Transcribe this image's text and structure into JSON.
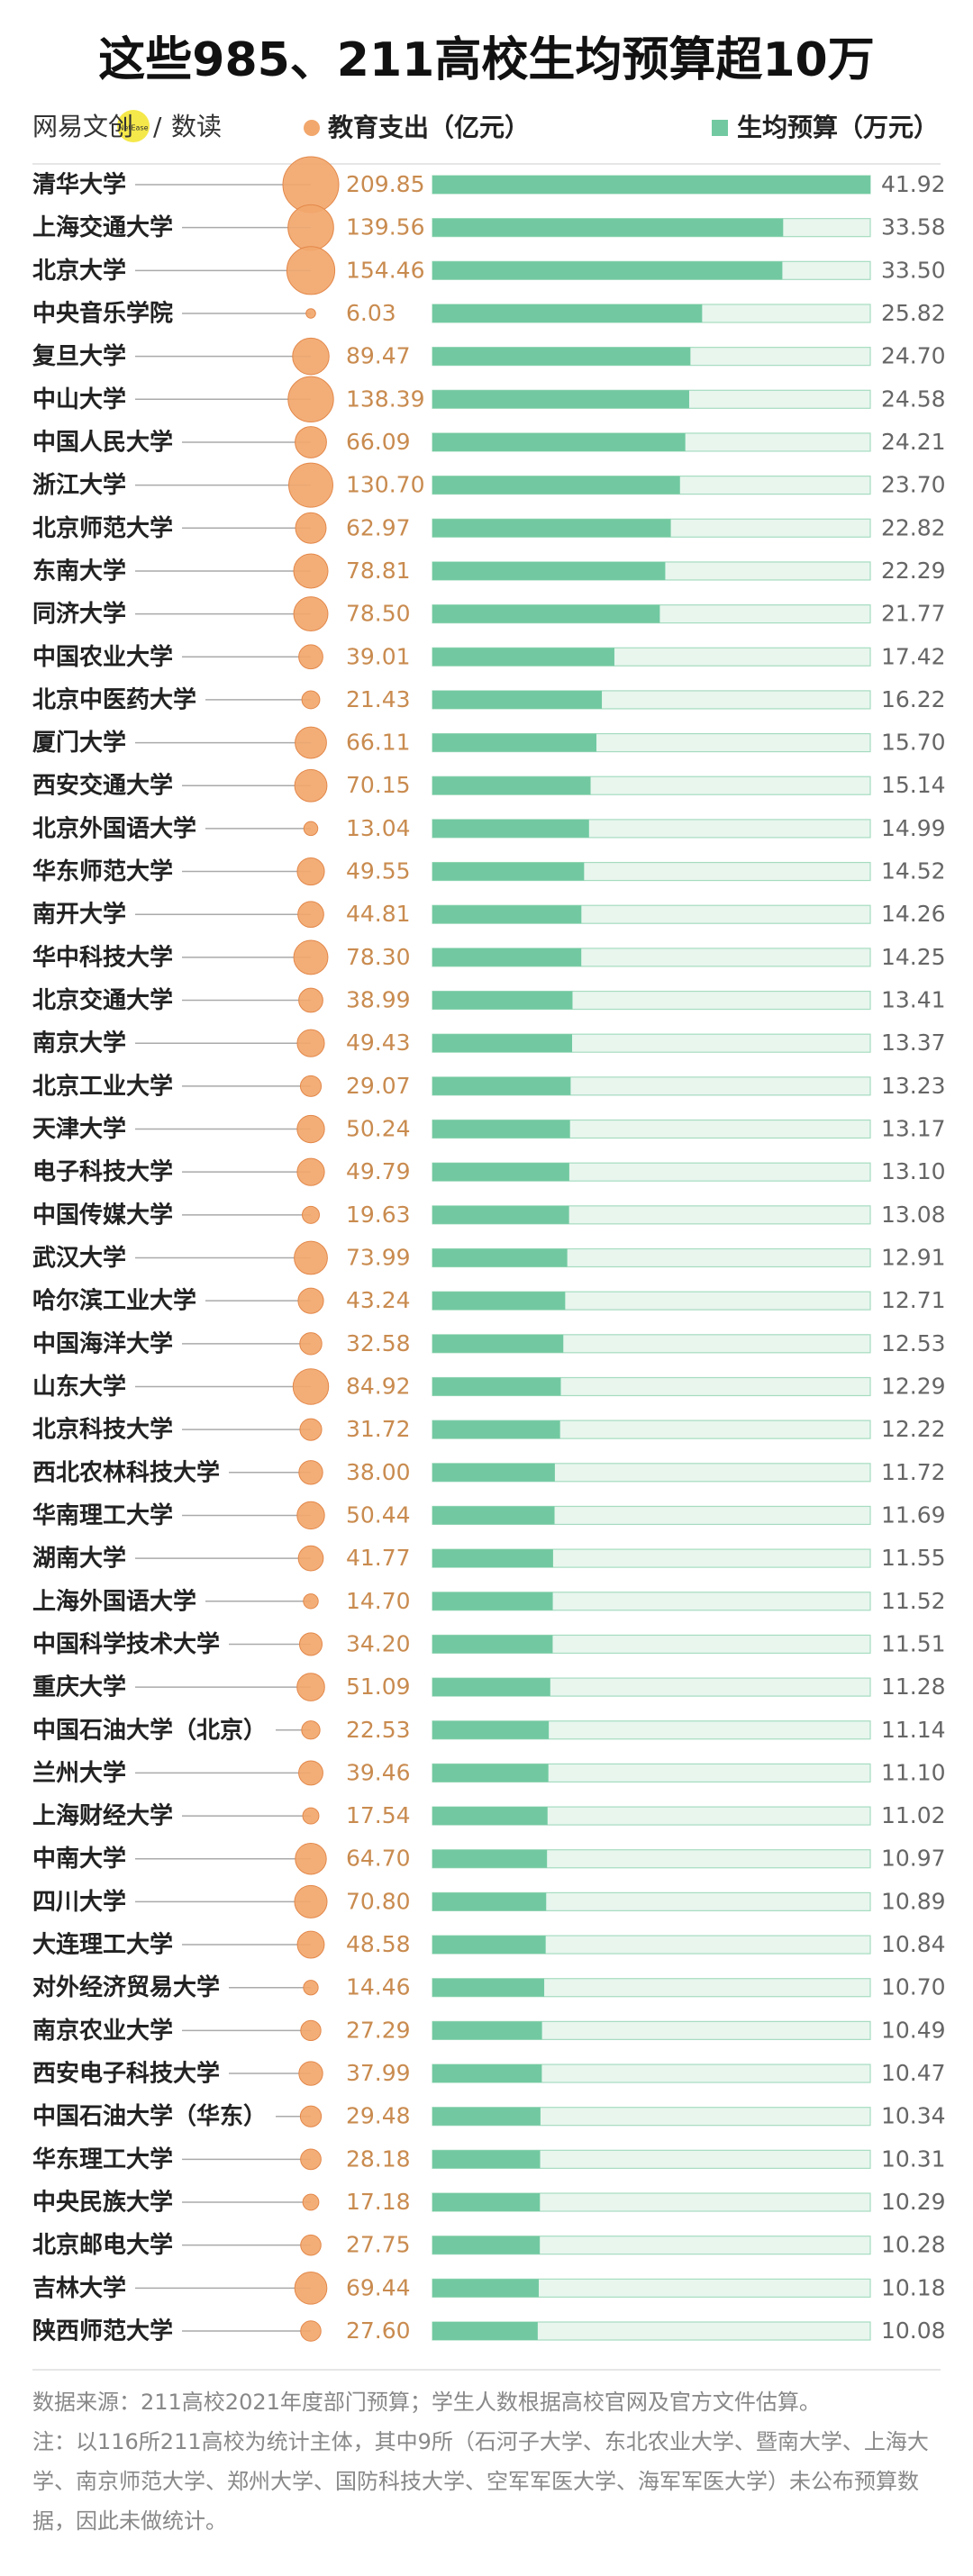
{
  "chart_data": {
    "type": "bar-bubble",
    "title": "这些985、211高校生均预算超10万",
    "brand": "网易文创",
    "brand_sub": "NetEase",
    "column": "数读",
    "categories": [
      "清华大学",
      "上海交通大学",
      "北京大学",
      "中央音乐学院",
      "复旦大学",
      "中山大学",
      "中国人民大学",
      "浙江大学",
      "北京师范大学",
      "东南大学",
      "同济大学",
      "中国农业大学",
      "北京中医药大学",
      "厦门大学",
      "西安交通大学",
      "北京外国语大学",
      "华东师范大学",
      "南开大学",
      "华中科技大学",
      "北京交通大学",
      "南京大学",
      "北京工业大学",
      "天津大学",
      "电子科技大学",
      "中国传媒大学",
      "武汉大学",
      "哈尔滨工业大学",
      "中国海洋大学",
      "山东大学",
      "北京科技大学",
      "西北农林科技大学",
      "华南理工大学",
      "湖南大学",
      "上海外国语大学",
      "中国科学技术大学",
      "重庆大学",
      "中国石油大学（北京）",
      "兰州大学",
      "上海财经大学",
      "中南大学",
      "四川大学",
      "大连理工大学",
      "对外经济贸易大学",
      "南京农业大学",
      "西安电子科技大学",
      "中国石油大学（华东）",
      "华东理工大学",
      "中央民族大学",
      "北京邮电大学",
      "吉林大学",
      "陕西师范大学"
    ],
    "series": [
      {
        "name": "教育支出（亿元）",
        "color": "#f2a76c",
        "values": [
          209.85,
          139.56,
          154.46,
          6.03,
          89.47,
          138.39,
          66.09,
          130.7,
          62.97,
          78.81,
          78.5,
          39.01,
          21.43,
          66.11,
          70.15,
          13.04,
          49.55,
          44.81,
          78.3,
          38.99,
          49.43,
          29.07,
          50.24,
          49.79,
          19.63,
          73.99,
          43.24,
          32.58,
          84.92,
          31.72,
          38.0,
          50.44,
          41.77,
          14.7,
          34.2,
          51.09,
          22.53,
          39.46,
          17.54,
          64.7,
          70.8,
          48.58,
          14.46,
          27.29,
          37.99,
          29.48,
          28.18,
          17.18,
          27.75,
          69.44,
          27.6
        ],
        "value_labels": [
          "209.85",
          "139.56",
          "154.46",
          "6.03",
          "89.47",
          "138.39",
          "66.09",
          "130.70",
          "62.97",
          "78.81",
          "78.50",
          "39.01",
          "21.43",
          "66.11",
          "70.15",
          "13.04",
          "49.55",
          "44.81",
          "78.30",
          "38.99",
          "49.43",
          "29.07",
          "50.24",
          "49.79",
          "19.63",
          "73.99",
          "43.24",
          "32.58",
          "84.92",
          "31.72",
          "38.00",
          "50.44",
          "41.77",
          "14.70",
          "34.20",
          "51.09",
          "22.53",
          "39.46",
          "17.54",
          "64.70",
          "70.80",
          "48.58",
          "14.46",
          "27.29",
          "37.99",
          "29.48",
          "28.18",
          "17.18",
          "27.75",
          "69.44",
          "27.60"
        ]
      },
      {
        "name": "生均预算（万元）",
        "color": "#72c9a1",
        "values": [
          41.92,
          33.58,
          33.5,
          25.82,
          24.7,
          24.58,
          24.21,
          23.7,
          22.82,
          22.29,
          21.77,
          17.42,
          16.22,
          15.7,
          15.14,
          14.99,
          14.52,
          14.26,
          14.25,
          13.41,
          13.37,
          13.23,
          13.17,
          13.1,
          13.08,
          12.91,
          12.71,
          12.53,
          12.29,
          12.22,
          11.72,
          11.69,
          11.55,
          11.52,
          11.51,
          11.28,
          11.14,
          11.1,
          11.02,
          10.97,
          10.89,
          10.84,
          10.7,
          10.49,
          10.47,
          10.34,
          10.31,
          10.29,
          10.28,
          10.18,
          10.08
        ],
        "value_labels": [
          "41.92",
          "33.58",
          "33.50",
          "25.82",
          "24.70",
          "24.58",
          "24.21",
          "23.70",
          "22.82",
          "22.29",
          "21.77",
          "17.42",
          "16.22",
          "15.70",
          "15.14",
          "14.99",
          "14.52",
          "14.26",
          "14.25",
          "13.41",
          "13.37",
          "13.23",
          "13.17",
          "13.10",
          "13.08",
          "12.91",
          "12.71",
          "12.53",
          "12.29",
          "12.22",
          "11.72",
          "11.69",
          "11.55",
          "11.52",
          "11.51",
          "11.28",
          "11.14",
          "11.10",
          "11.02",
          "10.97",
          "10.89",
          "10.84",
          "10.70",
          "10.49",
          "10.47",
          "10.34",
          "10.31",
          "10.29",
          "10.28",
          "10.18",
          "10.08"
        ]
      }
    ],
    "xlim": [
      0,
      41.92
    ],
    "source": "数据来源：211高校2021年度部门预算；学生人数根据高校官网及官方文件估算。",
    "note": "注：以116所211高校为统计主体，其中9所（石河子大学、东北农业大学、暨南大学、上海大学、南京师范大学、郑州大学、国防科技大学、空军军医大学、海军军医大学）未公布预算数据，因此未做统计。"
  }
}
